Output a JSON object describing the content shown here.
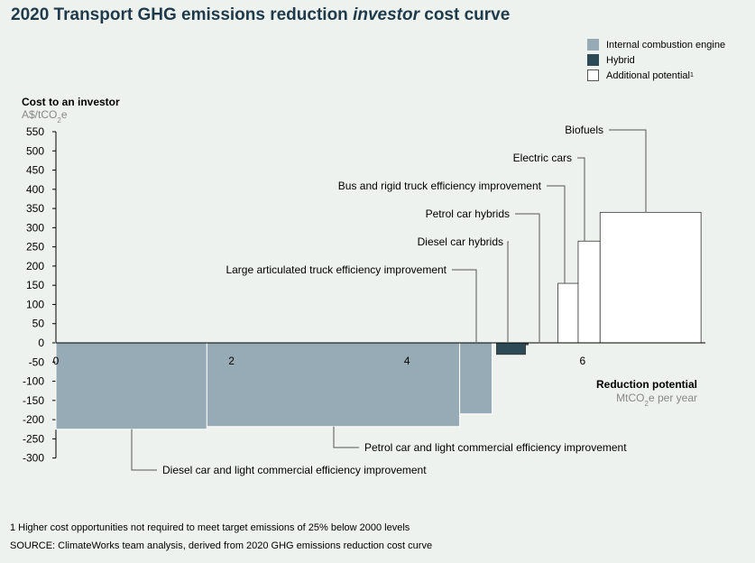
{
  "title": {
    "prefix": "2020 Transport GHG emissions reduction ",
    "emphasis": "investor",
    "suffix": " cost curve"
  },
  "colors": {
    "ice": "#96abb6",
    "hybrid": "#2e4a56",
    "additional": "#ffffff",
    "title": "#1f3a4a",
    "background": "#eef2ef"
  },
  "legend": [
    {
      "label": "Internal combustion engine",
      "color_key": "ice",
      "sup": ""
    },
    {
      "label": "Hybrid",
      "color_key": "hybrid",
      "sup": ""
    },
    {
      "label": "Additional potential",
      "color_key": "additional",
      "sup": "1"
    }
  ],
  "footnotes": {
    "note": "1 Higher cost opportunities not required to meet target emissions of 25% below 2000 levels",
    "source": "SOURCE: ClimateWorks team analysis, derived from 2020 GHG emissions reduction cost curve"
  },
  "chart_data": {
    "type": "bar",
    "subtype": "marginal-abatement-cost-curve",
    "y_axis": {
      "label": "Cost to an investor",
      "unit": "A$/tCO2e",
      "ticks": [
        550,
        500,
        450,
        400,
        350,
        300,
        250,
        200,
        150,
        100,
        50,
        0,
        -50,
        -100,
        -150,
        -200,
        -250,
        -300
      ],
      "range": [
        -300,
        550
      ]
    },
    "x_axis": {
      "label": "Reduction potential",
      "unit": "MtCO2e per year",
      "ticks": [
        0,
        2,
        4,
        6
      ],
      "range": [
        0,
        7.4
      ]
    },
    "series": [
      {
        "name": "Diesel car and light commercial efficiency improvement",
        "category": "ice",
        "x_start": 0.0,
        "x_end": 1.72,
        "cost": -225
      },
      {
        "name": "Petrol car and light commercial efficiency improvement",
        "category": "ice",
        "x_start": 1.72,
        "x_end": 4.6,
        "cost": -218
      },
      {
        "name": "Large articulated truck efficiency improvement",
        "category": "ice",
        "x_start": 4.6,
        "x_end": 4.97,
        "cost": -185
      },
      {
        "name": "Diesel car hybrids",
        "category": "hybrid",
        "x_start": 5.02,
        "x_end": 5.35,
        "cost": -30
      },
      {
        "name": "Petrol car hybrids",
        "category": "hybrid",
        "x_start": 5.35,
        "x_end": 5.38,
        "cost": -5
      },
      {
        "name": "Bus and rigid truck efficiency improvement",
        "category": "additional",
        "x_start": 5.72,
        "x_end": 5.95,
        "cost": 155
      },
      {
        "name": "Electric cars",
        "category": "additional",
        "x_start": 5.95,
        "x_end": 6.2,
        "cost": 265
      },
      {
        "name": "Biofuels",
        "category": "additional",
        "x_start": 6.2,
        "x_end": 7.35,
        "cost": 340
      }
    ]
  }
}
